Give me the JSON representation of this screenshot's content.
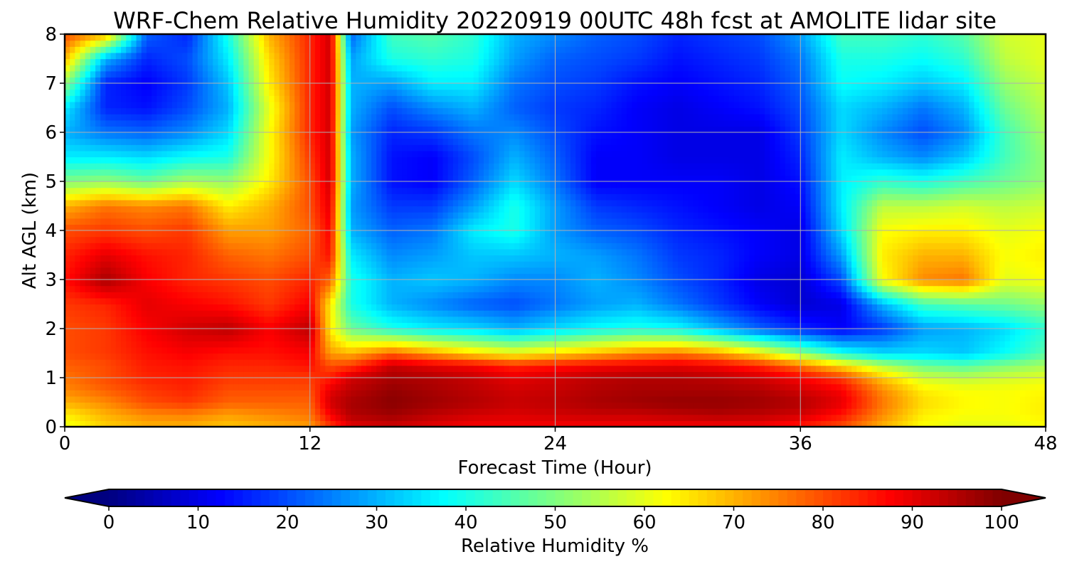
{
  "chart_data": {
    "type": "heatmap",
    "title": "WRF-Chem Relative Humidity 20220919 00UTC 48h fcst at AMOLITE lidar site",
    "xlabel": "Forecast Time (Hour)",
    "ylabel": "Alt AGL (km)",
    "xlim": [
      0,
      48
    ],
    "ylim": [
      0,
      8
    ],
    "xticks": [
      0,
      12,
      24,
      36,
      48
    ],
    "yticks": [
      0,
      1,
      2,
      3,
      4,
      5,
      6,
      7,
      8
    ],
    "grid": true,
    "colormap": "jet",
    "colorbar": {
      "label": "Relative Humidity %",
      "ticks": [
        0,
        10,
        20,
        30,
        40,
        50,
        60,
        70,
        80,
        90,
        100
      ],
      "range": [
        0,
        100
      ],
      "extend": "both",
      "orientation": "horizontal"
    },
    "x": [
      0,
      2,
      4,
      6,
      8,
      10,
      12,
      13,
      14,
      16,
      18,
      20,
      22,
      24,
      26,
      28,
      30,
      32,
      34,
      36,
      38,
      40,
      42,
      44,
      46,
      48
    ],
    "y": [
      0,
      0.25,
      0.5,
      0.75,
      1,
      1.25,
      1.5,
      2,
      2.5,
      3,
      3.5,
      4,
      4.5,
      5,
      5.5,
      6,
      6.5,
      7,
      7.5,
      8
    ],
    "z": [
      [
        60,
        67,
        70,
        70,
        68,
        70,
        72,
        82,
        90,
        92,
        90,
        88,
        88,
        88,
        88,
        88,
        88,
        88,
        88,
        85,
        80,
        70,
        62,
        60,
        60,
        62
      ],
      [
        64,
        70,
        74,
        75,
        72,
        74,
        76,
        88,
        95,
        97,
        94,
        92,
        91,
        92,
        93,
        93,
        94,
        95,
        94,
        92,
        86,
        74,
        64,
        62,
        62,
        64
      ],
      [
        70,
        74,
        80,
        82,
        78,
        78,
        78,
        92,
        96,
        99,
        97,
        95,
        93,
        94,
        96,
        97,
        98,
        98,
        97,
        95,
        90,
        76,
        66,
        63,
        62,
        64
      ],
      [
        74,
        78,
        82,
        84,
        80,
        80,
        80,
        90,
        94,
        98,
        96,
        94,
        92,
        93,
        95,
        96,
        96,
        96,
        95,
        92,
        88,
        74,
        64,
        62,
        62,
        63
      ],
      [
        76,
        80,
        84,
        85,
        82,
        82,
        82,
        85,
        92,
        96,
        95,
        93,
        90,
        92,
        94,
        95,
        95,
        94,
        92,
        88,
        82,
        68,
        58,
        56,
        58,
        60
      ],
      [
        78,
        80,
        85,
        86,
        84,
        84,
        86,
        80,
        82,
        93,
        90,
        88,
        84,
        86,
        88,
        89,
        90,
        88,
        84,
        76,
        66,
        55,
        48,
        46,
        50,
        54
      ],
      [
        80,
        82,
        86,
        88,
        86,
        86,
        88,
        72,
        70,
        78,
        72,
        66,
        62,
        66,
        70,
        74,
        76,
        72,
        64,
        52,
        40,
        34,
        34,
        32,
        38,
        46
      ],
      [
        80,
        82,
        88,
        92,
        94,
        88,
        94,
        64,
        48,
        40,
        36,
        34,
        30,
        34,
        38,
        40,
        38,
        30,
        22,
        16,
        12,
        18,
        28,
        30,
        34,
        42
      ],
      [
        82,
        84,
        90,
        88,
        86,
        82,
        88,
        64,
        40,
        30,
        26,
        22,
        20,
        24,
        28,
        30,
        24,
        18,
        12,
        8,
        10,
        30,
        44,
        46,
        48,
        52
      ],
      [
        86,
        96,
        88,
        84,
        82,
        80,
        84,
        78,
        40,
        30,
        32,
        30,
        26,
        26,
        30,
        26,
        20,
        16,
        10,
        8,
        20,
        62,
        74,
        76,
        60,
        62
      ],
      [
        84,
        90,
        86,
        84,
        78,
        76,
        80,
        86,
        36,
        26,
        28,
        32,
        32,
        30,
        28,
        24,
        18,
        16,
        12,
        10,
        28,
        64,
        70,
        70,
        62,
        64
      ],
      [
        80,
        82,
        80,
        82,
        72,
        72,
        78,
        88,
        30,
        22,
        24,
        36,
        40,
        28,
        22,
        20,
        16,
        14,
        12,
        10,
        34,
        62,
        64,
        64,
        60,
        62
      ],
      [
        70,
        76,
        74,
        76,
        64,
        70,
        80,
        90,
        28,
        18,
        18,
        28,
        40,
        28,
        18,
        16,
        14,
        12,
        10,
        12,
        36,
        56,
        56,
        58,
        56,
        58
      ],
      [
        50,
        52,
        48,
        54,
        52,
        64,
        80,
        92,
        30,
        14,
        12,
        22,
        34,
        24,
        12,
        12,
        12,
        12,
        10,
        14,
        36,
        42,
        40,
        44,
        48,
        52
      ],
      [
        36,
        36,
        34,
        38,
        40,
        62,
        82,
        92,
        30,
        14,
        12,
        20,
        30,
        22,
        12,
        12,
        10,
        10,
        10,
        16,
        36,
        30,
        26,
        32,
        44,
        52
      ],
      [
        30,
        24,
        22,
        26,
        34,
        62,
        84,
        92,
        28,
        16,
        18,
        24,
        26,
        20,
        14,
        12,
        10,
        10,
        10,
        18,
        34,
        26,
        20,
        26,
        44,
        54
      ],
      [
        36,
        16,
        14,
        20,
        30,
        60,
        84,
        92,
        30,
        20,
        26,
        30,
        22,
        18,
        16,
        12,
        10,
        12,
        14,
        20,
        34,
        30,
        24,
        30,
        48,
        56
      ],
      [
        52,
        16,
        12,
        18,
        32,
        64,
        84,
        92,
        30,
        28,
        36,
        36,
        24,
        20,
        18,
        14,
        12,
        14,
        16,
        22,
        38,
        36,
        32,
        36,
        52,
        58
      ],
      [
        70,
        30,
        16,
        20,
        36,
        66,
        84,
        92,
        28,
        40,
        42,
        40,
        28,
        22,
        20,
        18,
        14,
        16,
        18,
        24,
        40,
        40,
        38,
        42,
        56,
        60
      ],
      [
        80,
        70,
        22,
        16,
        40,
        70,
        84,
        92,
        22,
        44,
        46,
        42,
        30,
        26,
        22,
        20,
        16,
        18,
        20,
        28,
        44,
        44,
        42,
        46,
        58,
        60
      ]
    ]
  }
}
